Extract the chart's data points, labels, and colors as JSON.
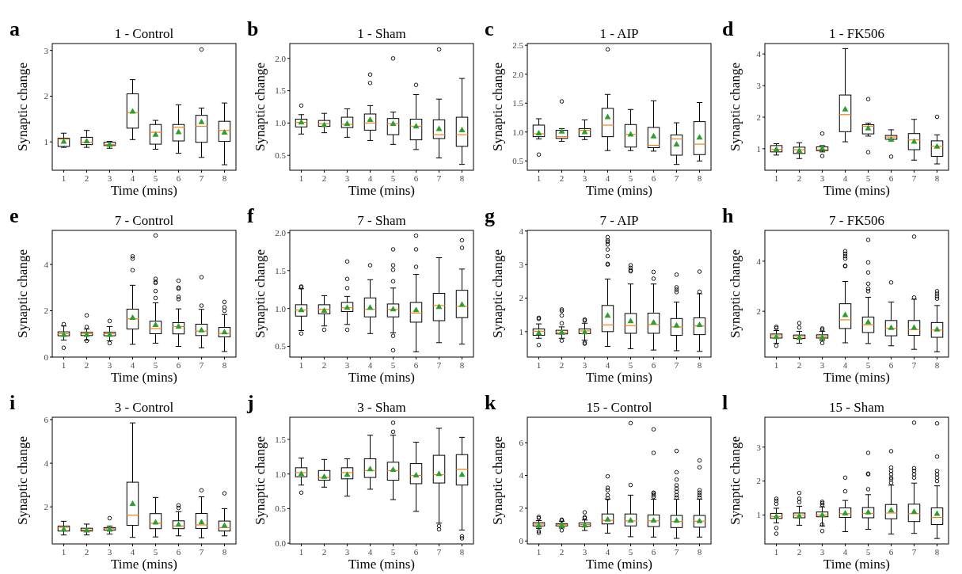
{
  "chart_data": [
    {
      "type": "box",
      "title": "1 - Control",
      "xlabel": "Time (mins)",
      "ylabel": "Synaptic change",
      "annotations": [
        "a"
      ],
      "categories": [
        "1",
        "2",
        "3",
        "4",
        "5",
        "6",
        "7",
        "8"
      ],
      "ylim": [
        0.38,
        3.15
      ],
      "yticks": [
        1,
        2,
        3
      ],
      "marker": "triangle",
      "series": [
        {
          "color": "#000000",
          "boxes": [
            {
              "low": 0.88,
              "q1": 0.9,
              "median": 1.06,
              "q3": 1.08,
              "high": 1.19,
              "mean": 1.02
            },
            {
              "low": 0.88,
              "q1": 0.94,
              "median": 0.99,
              "q3": 1.1,
              "high": 1.25,
              "mean": 1.03
            },
            {
              "low": 0.86,
              "q1": 0.92,
              "median": 0.94,
              "q3": 0.99,
              "high": 1.01,
              "mean": 0.95
            },
            {
              "low": 1.05,
              "q1": 1.3,
              "median": 1.64,
              "q3": 2.05,
              "high": 2.36,
              "mean": 1.68
            },
            {
              "low": 0.84,
              "q1": 0.95,
              "median": 1.21,
              "q3": 1.38,
              "high": 1.47,
              "mean": 1.17
            },
            {
              "low": 0.75,
              "q1": 1.02,
              "median": 1.32,
              "q3": 1.38,
              "high": 1.81,
              "mean": 1.23
            },
            {
              "low": 0.66,
              "q1": 0.99,
              "median": 1.34,
              "q3": 1.58,
              "high": 1.74,
              "mean": 1.45,
              "outliers": [
                3.02
              ]
            },
            {
              "low": 0.5,
              "q1": 1.01,
              "median": 1.25,
              "q3": 1.45,
              "high": 1.85,
              "mean": 1.22
            }
          ]
        }
      ]
    },
    {
      "type": "box",
      "title": "1 - Sham",
      "xlabel": "Time (mins)",
      "ylabel": "Synaptic change",
      "annotations": [
        "b"
      ],
      "categories": [
        "1",
        "2",
        "3",
        "4",
        "5",
        "6",
        "7",
        "8"
      ],
      "ylim": [
        0.27,
        2.23
      ],
      "yticks": [
        0.5,
        {
          "value": 1,
          "label": "1.0"
        },
        1.5,
        {
          "value": 2,
          "label": "2.0"
        }
      ],
      "marker": "triangle",
      "series": [
        {
          "color": "#000000",
          "boxes": [
            {
              "low": 0.83,
              "q1": 0.94,
              "median": 1.01,
              "q3": 1.06,
              "high": 1.13,
              "mean": 1.02,
              "outliers": [
                1.27
              ]
            },
            {
              "low": 0.85,
              "q1": 0.95,
              "median": 0.99,
              "q3": 1.04,
              "high": 1.15,
              "mean": 0.98
            },
            {
              "low": 0.78,
              "q1": 0.93,
              "median": 0.98,
              "q3": 1.09,
              "high": 1.22,
              "mean": 1.0
            },
            {
              "low": 0.73,
              "q1": 0.89,
              "median": 1.0,
              "q3": 1.14,
              "high": 1.27,
              "mean": 1.06,
              "outliers": [
                1.62,
                1.75
              ]
            },
            {
              "low": 0.67,
              "q1": 0.82,
              "median": 0.99,
              "q3": 1.07,
              "high": 1.17,
              "mean": 1.0,
              "outliers": [
                2.0
              ]
            },
            {
              "low": 0.59,
              "q1": 0.74,
              "median": 0.95,
              "q3": 1.06,
              "high": 1.44,
              "mean": 0.96,
              "outliers": [
                1.59
              ]
            },
            {
              "low": 0.46,
              "q1": 0.76,
              "median": 0.82,
              "q3": 1.05,
              "high": 1.37,
              "mean": 0.92,
              "outliers": [
                2.14
              ]
            },
            {
              "low": 0.36,
              "q1": 0.64,
              "median": 0.82,
              "q3": 1.09,
              "high": 1.69,
              "mean": 0.9
            }
          ]
        }
      ]
    },
    {
      "type": "box",
      "title": "1 - AIP",
      "xlabel": "Time (mins)",
      "ylabel": "Synaptic change",
      "annotations": [
        "c"
      ],
      "categories": [
        "1",
        "2",
        "3",
        "4",
        "5",
        "6",
        "7",
        "8"
      ],
      "ylim": [
        0.34,
        2.53
      ],
      "yticks": [
        0.5,
        {
          "value": 1,
          "label": "1.0"
        },
        1.5,
        {
          "value": 2,
          "label": "2.0"
        },
        2.5
      ],
      "marker": "triangle",
      "series": [
        {
          "color": "#000000",
          "boxes": [
            {
              "low": 0.88,
              "q1": 0.92,
              "median": 0.97,
              "q3": 1.12,
              "high": 1.23,
              "mean": 0.99,
              "outliers": [
                0.61
              ]
            },
            {
              "low": 0.84,
              "q1": 0.89,
              "median": 0.92,
              "q3": 1.03,
              "high": 1.06,
              "mean": 1.02,
              "outliers": [
                1.53
              ]
            },
            {
              "low": 0.87,
              "q1": 0.92,
              "median": 1.03,
              "q3": 1.06,
              "high": 1.21,
              "mean": 1.01
            },
            {
              "low": 0.68,
              "q1": 0.92,
              "median": 1.12,
              "q3": 1.41,
              "high": 1.65,
              "mean": 1.27,
              "outliers": [
                2.43
              ]
            },
            {
              "low": 0.68,
              "q1": 0.74,
              "median": 0.96,
              "q3": 1.13,
              "high": 1.39,
              "mean": 0.97
            },
            {
              "low": 0.67,
              "q1": 0.73,
              "median": 0.77,
              "q3": 1.08,
              "high": 1.54,
              "mean": 0.94
            },
            {
              "low": 0.44,
              "q1": 0.6,
              "median": 0.88,
              "q3": 0.95,
              "high": 1.16,
              "mean": 0.8
            },
            {
              "low": 0.5,
              "q1": 0.61,
              "median": 0.79,
              "q3": 1.18,
              "high": 1.51,
              "mean": 0.92
            }
          ]
        }
      ]
    },
    {
      "type": "box",
      "title": "1 - FK506",
      "xlabel": "Time (mins)",
      "ylabel": "Synaptic change",
      "annotations": [
        "d"
      ],
      "categories": [
        "1",
        "2",
        "3",
        "4",
        "5",
        "6",
        "7",
        "8"
      ],
      "ylim": [
        0.32,
        4.33
      ],
      "yticks": [
        1,
        2,
        3,
        4
      ],
      "marker": "triangle",
      "series": [
        {
          "color": "#000000",
          "boxes": [
            {
              "low": 0.8,
              "q1": 0.9,
              "median": 0.98,
              "q3": 1.1,
              "high": 1.16,
              "mean": 1.0
            },
            {
              "low": 0.69,
              "q1": 0.85,
              "median": 0.97,
              "q3": 1.05,
              "high": 1.19,
              "mean": 0.96
            },
            {
              "low": 0.9,
              "q1": 0.94,
              "median": 0.97,
              "q3": 1.06,
              "high": 1.1,
              "mean": 1.03,
              "outliers": [
                0.77,
                1.48
              ]
            },
            {
              "low": 1.22,
              "q1": 1.54,
              "median": 2.08,
              "q3": 2.7,
              "high": 4.17,
              "mean": 2.27
            },
            {
              "low": 1.4,
              "q1": 1.47,
              "median": 1.71,
              "q3": 1.76,
              "high": 1.81,
              "mean": 1.67,
              "outliers": [
                0.89,
                2.57
              ]
            },
            {
              "low": 1.3,
              "q1": 1.3,
              "median": 1.37,
              "q3": 1.42,
              "high": 1.6,
              "mean": 1.31,
              "outliers": [
                0.75
              ]
            },
            {
              "low": 0.64,
              "q1": 0.97,
              "median": 1.28,
              "q3": 1.48,
              "high": 1.93,
              "mean": 1.25
            },
            {
              "low": 0.52,
              "q1": 0.76,
              "median": 1.08,
              "q3": 1.25,
              "high": 1.44,
              "mean": 1.09,
              "outliers": [
                2.01
              ]
            }
          ]
        }
      ]
    },
    {
      "type": "box",
      "title": "7 - Control",
      "xlabel": "Time (mins)",
      "ylabel": "Synaptic change",
      "annotations": [
        "e"
      ],
      "categories": [
        "1",
        "2",
        "3",
        "4",
        "5",
        "6",
        "7",
        "8"
      ],
      "ylim": [
        0,
        5.47
      ],
      "yticks": [
        0,
        2,
        4
      ],
      "marker": "triangle",
      "series": [
        {
          "color": "#000000",
          "boxes": [
            {
              "low": 0.73,
              "q1": 0.92,
              "median": 1.01,
              "q3": 1.09,
              "high": 1.34,
              "mean": 0.99,
              "outliers": [
                0.4,
                1.42
              ]
            },
            {
              "low": 0.73,
              "q1": 0.93,
              "median": 1.01,
              "q3": 1.07,
              "high": 1.21,
              "mean": 0.99,
              "outliers": [
                0.7,
                1.3,
                1.8
              ]
            },
            {
              "low": 0.7,
              "q1": 0.92,
              "median": 1.01,
              "q3": 1.07,
              "high": 1.32,
              "mean": 0.99,
              "outliers": [
                0.6,
                1.56
              ]
            },
            {
              "low": 0.55,
              "q1": 1.21,
              "median": 1.65,
              "q3": 2.07,
              "high": 3.1,
              "mean": 1.73,
              "outliers": [
                3.75,
                4.25,
                4.35
              ]
            },
            {
              "low": 0.6,
              "q1": 1.01,
              "median": 1.23,
              "q3": 1.55,
              "high": 2.34,
              "mean": 1.42,
              "outliers": [
                2.55,
                2.85,
                3.2,
                3.25,
                3.38,
                5.25
              ]
            },
            {
              "low": 0.46,
              "q1": 1.0,
              "median": 1.32,
              "q3": 1.49,
              "high": 2.08,
              "mean": 1.35,
              "outliers": [
                2.5,
                2.6,
                2.95,
                3.0,
                3.3
              ]
            },
            {
              "low": 0.4,
              "q1": 0.93,
              "median": 1.12,
              "q3": 1.42,
              "high": 2.06,
              "mean": 1.19,
              "outliers": [
                2.22,
                3.45
              ]
            },
            {
              "low": 0.24,
              "q1": 0.87,
              "median": 1.02,
              "q3": 1.28,
              "high": 1.84,
              "mean": 1.1,
              "outliers": [
                2.0,
                2.15,
                2.38
              ]
            }
          ]
        }
      ]
    },
    {
      "type": "box",
      "title": "7 - Sham",
      "xlabel": "Time (mins)",
      "ylabel": "Synaptic change",
      "annotations": [
        "f"
      ],
      "categories": [
        "1",
        "2",
        "3",
        "4",
        "5",
        "6",
        "7",
        "8"
      ],
      "ylim": [
        0.36,
        2.03
      ],
      "yticks": [
        0.5,
        {
          "value": 1,
          "label": "1.0"
        },
        1.5,
        {
          "value": 2,
          "label": "2.0"
        }
      ],
      "marker": "triangle",
      "series": [
        {
          "color": "#000000",
          "boxes": [
            {
              "low": 0.71,
              "q1": 0.9,
              "median": 0.98,
              "q3": 1.05,
              "high": 1.26,
              "mean": 0.99,
              "outliers": [
                0.67,
                1.28,
                1.29
              ]
            },
            {
              "low": 0.77,
              "q1": 0.93,
              "median": 0.99,
              "q3": 1.05,
              "high": 1.17,
              "mean": 0.98,
              "outliers": [
                0.72
              ]
            },
            {
              "low": 0.79,
              "q1": 0.96,
              "median": 1.01,
              "q3": 1.08,
              "high": 1.16,
              "mean": 1.02,
              "outliers": [
                0.72,
                1.27,
                1.39,
                1.62
              ]
            },
            {
              "low": 0.67,
              "q1": 0.89,
              "median": 0.99,
              "q3": 1.14,
              "high": 1.38,
              "mean": 1.02,
              "outliers": [
                1.57
              ]
            },
            {
              "low": 0.68,
              "q1": 0.89,
              "median": 0.99,
              "q3": 1.06,
              "high": 1.27,
              "mean": 1.0,
              "outliers": [
                0.45,
                0.64,
                1.36,
                1.51,
                1.57,
                1.78
              ]
            },
            {
              "low": 0.43,
              "q1": 0.82,
              "median": 0.94,
              "q3": 1.08,
              "high": 1.45,
              "mean": 0.99,
              "outliers": [
                1.55,
                1.78,
                1.96
              ]
            },
            {
              "low": 0.55,
              "q1": 0.84,
              "median": 1.04,
              "q3": 1.2,
              "high": 1.67,
              "mean": 1.03
            },
            {
              "low": 0.53,
              "q1": 0.88,
              "median": 1.03,
              "q3": 1.24,
              "high": 1.52,
              "mean": 1.06,
              "outliers": [
                1.8,
                1.9
              ]
            }
          ]
        }
      ]
    },
    {
      "type": "box",
      "title": "7 - AIP",
      "xlabel": "Time (mins)",
      "ylabel": "Synaptic change",
      "annotations": [
        "g"
      ],
      "categories": [
        "1",
        "2",
        "3",
        "4",
        "5",
        "6",
        "7",
        "8"
      ],
      "ylim": [
        0.24,
        4.02
      ],
      "yticks": [
        1,
        2,
        3,
        4
      ],
      "marker": "triangle",
      "series": [
        {
          "color": "#000000",
          "boxes": [
            {
              "low": 0.8,
              "q1": 0.89,
              "median": 1.01,
              "q3": 1.08,
              "high": 1.23,
              "mean": 0.98,
              "outliers": [
                0.6,
                1.38,
                1.41
              ]
            },
            {
              "low": 0.8,
              "q1": 0.93,
              "median": 0.98,
              "q3": 1.04,
              "high": 1.14,
              "mean": 0.99,
              "outliers": [
                0.73,
                1.25,
                1.48,
                1.62,
                1.66
              ]
            },
            {
              "low": 0.74,
              "q1": 0.94,
              "median": 1.02,
              "q3": 1.08,
              "high": 1.25,
              "mean": 1.0,
              "outliers": [
                0.64,
                0.67,
                1.33,
                1.36
              ]
            },
            {
              "low": 0.56,
              "q1": 1.0,
              "median": 1.2,
              "q3": 1.78,
              "high": 2.57,
              "mean": 1.5,
              "outliers": [
                3.0,
                3.02,
                3.25,
                3.45,
                3.6,
                3.68,
                3.72,
                3.82
              ]
            },
            {
              "low": 0.49,
              "q1": 0.95,
              "median": 1.18,
              "q3": 1.54,
              "high": 2.42,
              "mean": 1.33,
              "outliers": [
                2.8,
                2.83,
                2.9,
                2.98
              ]
            },
            {
              "low": 0.45,
              "q1": 0.95,
              "median": 1.21,
              "q3": 1.55,
              "high": 2.42,
              "mean": 1.29,
              "outliers": [
                2.58,
                2.78
              ]
            },
            {
              "low": 0.43,
              "q1": 0.89,
              "median": 1.14,
              "q3": 1.39,
              "high": 1.88,
              "mean": 1.2,
              "outliers": [
                2.18,
                2.25,
                2.32,
                2.7
              ]
            },
            {
              "low": 0.41,
              "q1": 0.91,
              "median": 1.17,
              "q3": 1.41,
              "high": 2.13,
              "mean": 1.22,
              "outliers": [
                2.19,
                2.79
              ]
            }
          ]
        }
      ]
    },
    {
      "type": "box",
      "title": "7 - FK506",
      "xlabel": "Time (mins)",
      "ylabel": "Synaptic change",
      "annotations": [
        "h"
      ],
      "categories": [
        "1",
        "2",
        "3",
        "4",
        "5",
        "6",
        "7",
        "8"
      ],
      "ylim": [
        0.17,
        5.23
      ],
      "yticks": [
        2,
        4
      ],
      "marker": "triangle",
      "series": [
        {
          "color": "#000000",
          "boxes": [
            {
              "low": 0.72,
              "q1": 0.93,
              "median": 1.02,
              "q3": 1.09,
              "high": 1.23,
              "mean": 1.0,
              "outliers": [
                0.62,
                1.33,
                1.38
              ]
            },
            {
              "low": 0.72,
              "q1": 0.91,
              "median": 0.97,
              "q3": 1.05,
              "high": 1.2,
              "mean": 0.97,
              "outliers": [
                1.35,
                1.53
              ]
            },
            {
              "low": 0.83,
              "q1": 0.93,
              "median": 0.99,
              "q3": 1.06,
              "high": 1.2,
              "mean": 0.98,
              "outliers": [
                0.73,
                1.27,
                1.31
              ]
            },
            {
              "low": 0.74,
              "q1": 1.31,
              "median": 1.66,
              "q3": 2.3,
              "high": 3.19,
              "mean": 1.88,
              "outliers": [
                3.8,
                3.82,
                4.1,
                4.2,
                4.3,
                4.4
              ]
            },
            {
              "low": 0.71,
              "q1": 1.15,
              "median": 1.46,
              "q3": 1.77,
              "high": 2.56,
              "mean": 1.59,
              "outliers": [
                2.8,
                2.9,
                3.1,
                3.55,
                3.95,
                4.85
              ]
            },
            {
              "low": 0.62,
              "q1": 1.02,
              "median": 1.32,
              "q3": 1.63,
              "high": 2.37,
              "mean": 1.36,
              "outliers": [
                3.15
              ]
            },
            {
              "low": 0.48,
              "q1": 1.04,
              "median": 1.27,
              "q3": 1.63,
              "high": 2.48,
              "mean": 1.37,
              "outliers": [
                2.55,
                4.98
              ]
            },
            {
              "low": 0.38,
              "q1": 0.96,
              "median": 1.25,
              "q3": 1.55,
              "high": 2.23,
              "mean": 1.3,
              "outliers": [
                2.5,
                2.6,
                2.7,
                2.8
              ]
            }
          ]
        }
      ]
    },
    {
      "type": "box",
      "title": "3 - Control",
      "xlabel": "Time (mins)",
      "ylabel": "Synaptic change",
      "annotations": [
        "i"
      ],
      "categories": [
        "1",
        "2",
        "3",
        "4",
        "5",
        "6",
        "7",
        "8"
      ],
      "ylim": [
        0.3,
        6.11
      ],
      "yticks": [
        2,
        4,
        6
      ],
      "marker": "triangle",
      "series": [
        {
          "color": "#000000",
          "boxes": [
            {
              "low": 0.71,
              "q1": 0.89,
              "median": 1.06,
              "q3": 1.12,
              "high": 1.34,
              "mean": 1.0
            },
            {
              "low": 0.71,
              "q1": 0.89,
              "median": 0.94,
              "q3": 1.02,
              "high": 1.21,
              "mean": 0.95
            },
            {
              "low": 0.75,
              "q1": 0.93,
              "median": 1.0,
              "q3": 1.05,
              "high": 1.12,
              "mean": 0.99,
              "outliers": [
                1.48
              ]
            },
            {
              "low": 0.6,
              "q1": 1.15,
              "median": 1.62,
              "q3": 3.13,
              "high": 5.85,
              "mean": 2.17
            },
            {
              "low": 0.62,
              "q1": 1.0,
              "median": 1.25,
              "q3": 1.69,
              "high": 2.43,
              "mean": 1.32
            },
            {
              "low": 0.67,
              "q1": 1.0,
              "median": 1.12,
              "q3": 1.36,
              "high": 1.78,
              "mean": 1.22,
              "outliers": [
                1.95,
                2.07
              ]
            },
            {
              "low": 0.58,
              "q1": 1.01,
              "median": 1.17,
              "q3": 1.7,
              "high": 2.46,
              "mean": 1.33,
              "outliers": [
                2.76
              ]
            },
            {
              "low": 0.67,
              "q1": 0.89,
              "median": 1.05,
              "q3": 1.35,
              "high": 1.92,
              "mean": 1.17,
              "outliers": [
                2.62
              ]
            }
          ]
        }
      ]
    },
    {
      "type": "box",
      "title": "3 - Sham",
      "xlabel": "Time (mins)",
      "ylabel": "Synaptic change",
      "annotations": [
        "j"
      ],
      "categories": [
        "1",
        "2",
        "3",
        "4",
        "5",
        "6",
        "7",
        "8"
      ],
      "ylim": [
        -0.01,
        1.82
      ],
      "yticks": [
        {
          "value": 0,
          "label": "0.0"
        },
        0.5,
        {
          "value": 1,
          "label": "1.0"
        },
        1.5
      ],
      "marker": "triangle",
      "series": [
        {
          "color": "#000000",
          "boxes": [
            {
              "low": 0.84,
              "q1": 0.96,
              "median": 1.02,
              "q3": 1.09,
              "high": 1.23,
              "mean": 1.01,
              "outliers": [
                0.73
              ]
            },
            {
              "low": 0.81,
              "q1": 0.91,
              "median": 0.95,
              "q3": 1.05,
              "high": 1.21,
              "mean": 0.97
            },
            {
              "low": 0.68,
              "q1": 0.93,
              "median": 1.02,
              "q3": 1.09,
              "high": 1.22,
              "mean": 1.0
            },
            {
              "low": 0.78,
              "q1": 0.95,
              "median": 1.05,
              "q3": 1.22,
              "high": 1.56,
              "mean": 1.08
            },
            {
              "low": 0.63,
              "q1": 0.91,
              "median": 1.05,
              "q3": 1.17,
              "high": 1.56,
              "mean": 1.07,
              "outliers": [
                1.61,
                1.74
              ]
            },
            {
              "low": 0.46,
              "q1": 0.86,
              "median": 0.98,
              "q3": 1.15,
              "high": 1.46,
              "mean": 0.99
            },
            {
              "low": 0.29,
              "q1": 0.87,
              "median": 0.99,
              "q3": 1.27,
              "high": 1.66,
              "mean": 1.01,
              "outliers": [
                0.2,
                0.25
              ]
            },
            {
              "low": 0.19,
              "q1": 0.84,
              "median": 1.07,
              "q3": 1.28,
              "high": 1.53,
              "mean": 1.0,
              "outliers": [
                0.07,
                0.1
              ]
            }
          ]
        }
      ]
    },
    {
      "type": "box",
      "title": "15 - Control",
      "xlabel": "Time (mins)",
      "ylabel": "Synaptic change",
      "annotations": [
        "k"
      ],
      "categories": [
        "1",
        "2",
        "3",
        "4",
        "5",
        "6",
        "7",
        "8"
      ],
      "ylim": [
        -0.18,
        7.56
      ],
      "yticks": [
        0,
        2,
        4,
        6
      ],
      "marker": "triangle",
      "series": [
        {
          "color": "#000000",
          "boxes": [
            {
              "low": 0.77,
              "q1": 0.92,
              "median": 1.03,
              "q3": 1.12,
              "high": 1.25,
              "mean": 0.98,
              "outliers": [
                0.5,
                0.6,
                1.4,
                1.47
              ]
            },
            {
              "low": 0.79,
              "q1": 0.92,
              "median": 1.01,
              "q3": 1.06,
              "high": 1.21,
              "mean": 0.98,
              "outliers": [
                0.65,
                1.25,
                1.3
              ]
            },
            {
              "low": 0.64,
              "q1": 0.9,
              "median": 1.01,
              "q3": 1.1,
              "high": 1.28,
              "mean": 0.99,
              "outliers": [
                1.4,
                1.45,
                1.75
              ]
            },
            {
              "low": 0.48,
              "q1": 1.04,
              "median": 1.26,
              "q3": 1.65,
              "high": 2.56,
              "mean": 1.36,
              "outliers": [
                2.6,
                2.8,
                3.1,
                3.25,
                3.95
              ]
            },
            {
              "low": 0.26,
              "q1": 0.92,
              "median": 1.23,
              "q3": 1.65,
              "high": 2.8,
              "mean": 1.3,
              "outliers": [
                3.42,
                7.2
              ]
            },
            {
              "low": 0.24,
              "q1": 0.88,
              "median": 1.23,
              "q3": 1.59,
              "high": 2.55,
              "mean": 1.3,
              "outliers": [
                2.7,
                2.8,
                2.9,
                2.95,
                5.38,
                6.82
              ]
            },
            {
              "low": 0.16,
              "q1": 0.82,
              "median": 1.19,
              "q3": 1.56,
              "high": 2.55,
              "mean": 1.28,
              "outliers": [
                2.65,
                2.8,
                3.0,
                3.2,
                3.4,
                3.75,
                4.2,
                5.5
              ]
            },
            {
              "low": 0.24,
              "q1": 0.84,
              "median": 1.21,
              "q3": 1.56,
              "high": 2.56,
              "mean": 1.26,
              "outliers": [
                2.65,
                2.8,
                2.95,
                3.1,
                4.5,
                4.92
              ]
            }
          ]
        }
      ]
    },
    {
      "type": "box",
      "title": "15 - Sham",
      "xlabel": "Time (mins)",
      "ylabel": "Synaptic change",
      "annotations": [
        "l"
      ],
      "categories": [
        "1",
        "2",
        "3",
        "4",
        "5",
        "6",
        "7",
        "8"
      ],
      "ylim": [
        0.15,
        3.88
      ],
      "yticks": [
        1,
        2,
        3
      ],
      "marker": "triangle",
      "series": [
        {
          "color": "#000000",
          "boxes": [
            {
              "low": 0.77,
              "q1": 0.9,
              "median": 0.96,
              "q3": 1.05,
              "high": 1.2,
              "mean": 0.98,
              "outliers": [
                0.45,
                0.62,
                1.33,
                1.42,
                1.48
              ]
            },
            {
              "low": 0.7,
              "q1": 0.92,
              "median": 1.0,
              "q3": 1.06,
              "high": 1.26,
              "mean": 0.99,
              "outliers": [
                1.38,
                1.48,
                1.65
              ]
            },
            {
              "low": 0.68,
              "q1": 0.95,
              "median": 1.0,
              "q3": 1.09,
              "high": 1.24,
              "mean": 1.02,
              "outliers": [
                0.53,
                0.72,
                1.3,
                1.35,
                1.39
              ]
            },
            {
              "low": 0.51,
              "q1": 0.93,
              "median": 1.04,
              "q3": 1.21,
              "high": 1.43,
              "mean": 1.07,
              "outliers": [
                1.7,
                2.1
              ]
            },
            {
              "low": 0.58,
              "q1": 0.92,
              "median": 1.05,
              "q3": 1.22,
              "high": 1.6,
              "mean": 1.1,
              "outliers": [
                1.76,
                2.2,
                2.22,
                2.83
              ]
            },
            {
              "low": 0.44,
              "q1": 0.89,
              "median": 1.06,
              "q3": 1.31,
              "high": 1.88,
              "mean": 1.16,
              "outliers": [
                1.95,
                2.05,
                2.1,
                2.2,
                2.3,
                2.4,
                2.88
              ]
            },
            {
              "low": 0.46,
              "q1": 0.81,
              "median": 1.04,
              "q3": 1.32,
              "high": 1.94,
              "mean": 1.12,
              "outliers": [
                2.1,
                2.2,
                2.3,
                2.38,
                3.72
              ]
            },
            {
              "low": 0.31,
              "q1": 0.72,
              "median": 0.93,
              "q3": 1.21,
              "high": 1.86,
              "mean": 1.06,
              "outliers": [
                2.0,
                2.1,
                2.2,
                2.3,
                2.72,
                3.7
              ]
            }
          ]
        }
      ]
    }
  ]
}
